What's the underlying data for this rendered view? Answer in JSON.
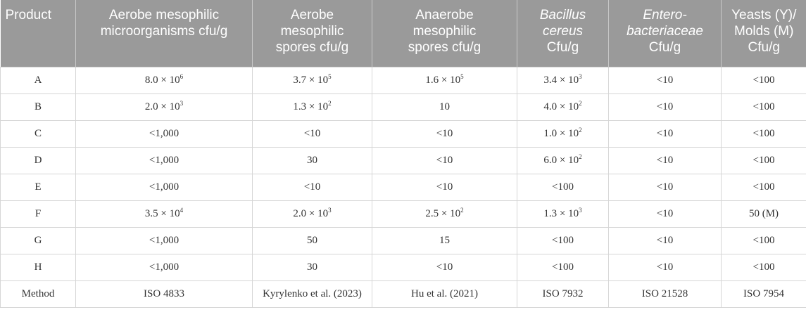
{
  "table": {
    "headers": [
      {
        "lines": [
          "Product"
        ],
        "italic": [
          false
        ]
      },
      {
        "lines": [
          "Aerobe mesophilic",
          "microorganisms cfu/g"
        ],
        "italic": [
          false,
          false
        ]
      },
      {
        "lines": [
          "Aerobe",
          "mesophilic",
          "spores cfu/g"
        ],
        "italic": [
          false,
          false,
          false
        ]
      },
      {
        "lines": [
          "Anaerobe",
          "mesophilic",
          "spores cfu/g"
        ],
        "italic": [
          false,
          false,
          false
        ]
      },
      {
        "lines": [
          "Bacillus",
          "cereus",
          "Cfu/g"
        ],
        "italic": [
          true,
          true,
          false
        ]
      },
      {
        "lines": [
          "Entero-",
          "bacteriaceae",
          "Cfu/g"
        ],
        "italic": [
          true,
          true,
          false
        ]
      },
      {
        "lines": [
          "Yeasts (Y)/",
          "Molds (M)",
          "Cfu/g"
        ],
        "italic": [
          false,
          false,
          false
        ]
      }
    ],
    "rows": [
      [
        "A",
        "8.0 × 10^6",
        "3.7 × 10^5",
        "1.6 × 10^5",
        "3.4 × 10^3",
        "<10",
        "<100"
      ],
      [
        "B",
        "2.0 × 10^3",
        "1.3 × 10^2",
        "10",
        "4.0 × 10^2",
        "<10",
        "<100"
      ],
      [
        "C",
        "<1,000",
        "<10",
        "<10",
        "1.0 × 10^2",
        "<10",
        "<100"
      ],
      [
        "D",
        "<1,000",
        "30",
        "<10",
        "6.0 × 10^2",
        "<10",
        "<100"
      ],
      [
        "E",
        "<1,000",
        "<10",
        "<10",
        "<100",
        "<10",
        "<100"
      ],
      [
        "F",
        "3.5 × 10^4",
        "2.0 × 10^3",
        "2.5 × 10^2",
        "1.3 × 10^3",
        "<10",
        "50 (M)"
      ],
      [
        "G",
        "<1,000",
        "50",
        "15",
        "<100",
        "<10",
        "<100"
      ],
      [
        "H",
        "<1,000",
        "30",
        "<10",
        "<100",
        "<10",
        "<100"
      ],
      [
        "Method",
        "ISO 4833",
        "Kyrylenko et al. (2023)",
        "Hu et al. (2021)",
        "ISO 7932",
        "ISO 21528",
        "ISO 7954"
      ]
    ]
  },
  "colors": {
    "header_bg": "#9a9a9a",
    "header_text": "#ffffff",
    "border": "#d6d6d6",
    "cell_text": "#333333"
  }
}
